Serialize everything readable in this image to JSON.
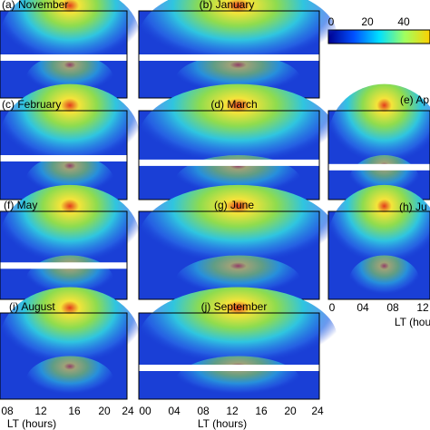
{
  "colorbar": {
    "ticks": [
      "0",
      "20",
      "40"
    ]
  },
  "panels": [
    {
      "title": "(a) November"
    },
    {
      "title": "(b) January"
    },
    {
      "title": "(c) February"
    },
    {
      "title": "(d) March"
    },
    {
      "title": "(e) Ap"
    },
    {
      "title": "(f) May"
    },
    {
      "title": "(g) June"
    },
    {
      "title": "(h) Ju"
    },
    {
      "title": "(i) August"
    },
    {
      "title": "(j) September"
    }
  ],
  "x_axes": [
    {
      "ticks": [
        "08",
        "12",
        "16",
        "20",
        "24"
      ],
      "label": "LT (hours)"
    },
    {
      "ticks": [
        "00",
        "04",
        "08",
        "12",
        "16",
        "20",
        "24"
      ],
      "label": "LT (hours)"
    },
    {
      "ticks": [
        "0",
        "04",
        "08",
        "12"
      ],
      "label": "LT (hou"
    }
  ]
}
